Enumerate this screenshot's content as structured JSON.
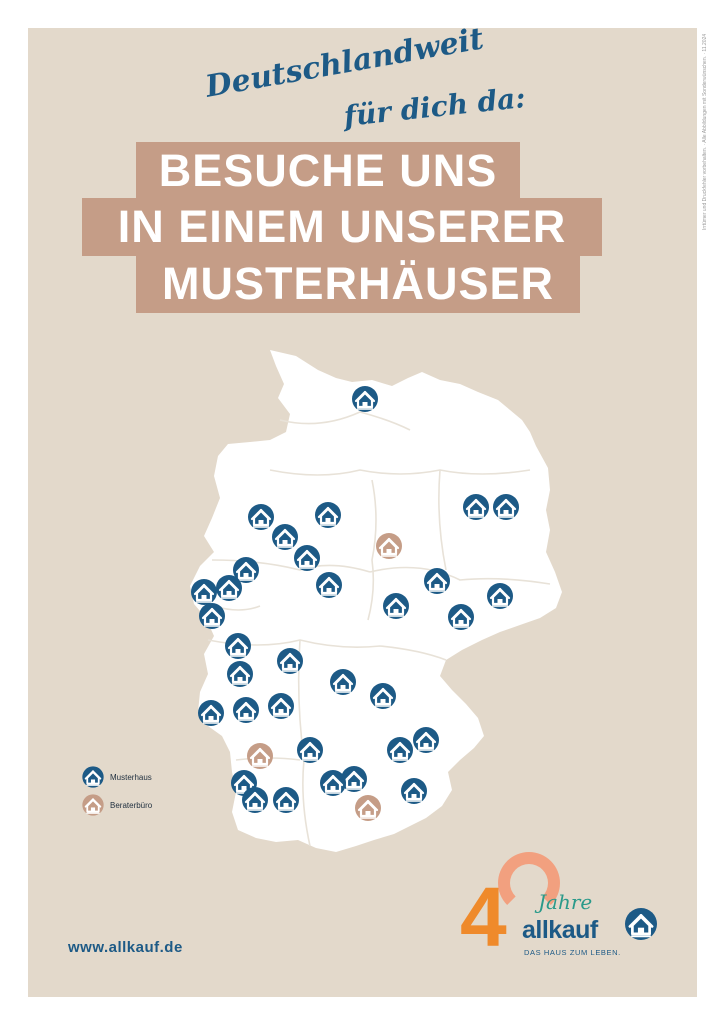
{
  "side_note": "Irrtümer und Druckfehler vorbehalten. · Alle Abbildungen mit Sonderwünschen. · 11.2024",
  "header": {
    "script_line1": "Deutschlandweit",
    "script_line2": "für dich da:",
    "headline_line1": "BESUCHE UNS",
    "headline_line2": "IN EINEM UNSERER",
    "headline_line3": "MUSTERHÄUSER"
  },
  "legend": {
    "musterhaus": "Musterhaus",
    "beraterbuero": "Beraterbüro"
  },
  "footer": {
    "url": "www.allkauf.de"
  },
  "logo": {
    "number": "4",
    "jahre": "Jahre",
    "brand": "allkauf",
    "tagline": "DAS HAUS ZUM LEBEN."
  },
  "colors": {
    "poster_bg": "#e3d9cb",
    "headline_bg": "#c59d87",
    "musterhaus": "#1d5a86",
    "beraterbuero": "#c59d87",
    "logo_orange": "#ef8a2b",
    "logo_teal": "#2a9a8a"
  },
  "icons": {
    "musterhaus": "house-icon",
    "beraterbuero": "house-icon"
  }
}
